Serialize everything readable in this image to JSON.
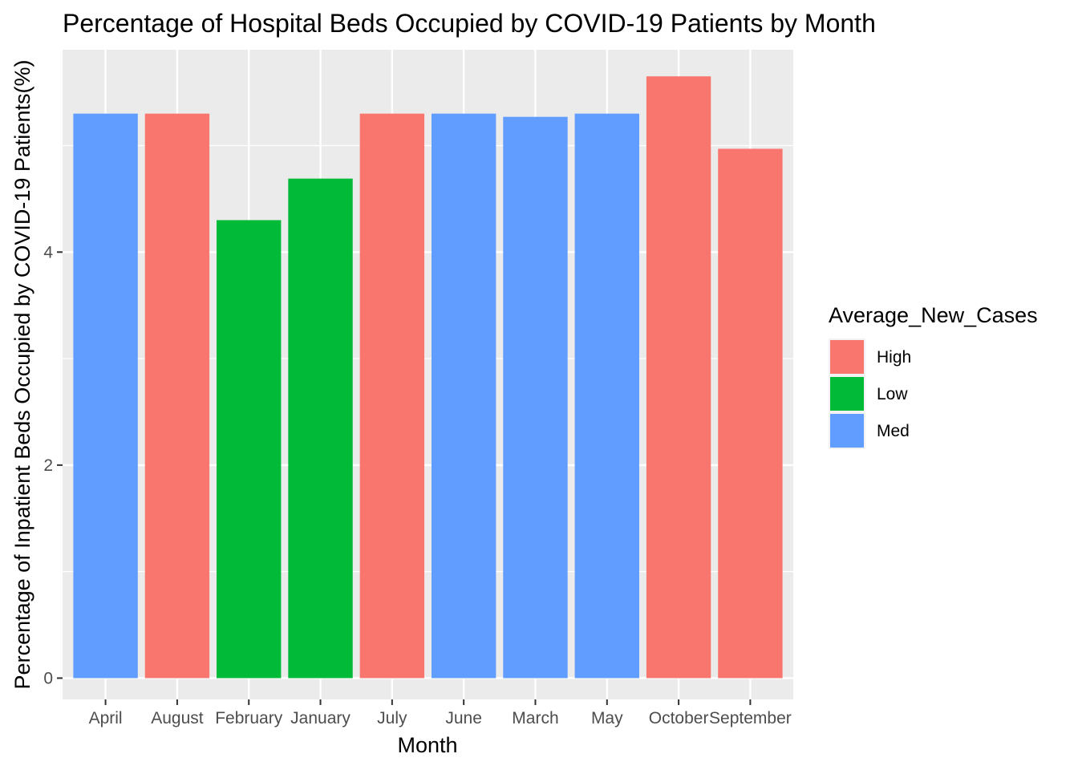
{
  "chart_data": {
    "type": "bar",
    "title": "Percentage of Hospital Beds Occupied by COVID-19 Patients by Month",
    "xlabel": "Month",
    "ylabel": "Percentage of Inpatient Beds Occupied by COVID-19 Patients(%)",
    "categories": [
      "April",
      "August",
      "February",
      "January",
      "July",
      "June",
      "March",
      "May",
      "October",
      "September"
    ],
    "values": [
      5.3,
      5.3,
      4.3,
      4.69,
      5.3,
      5.3,
      5.27,
      5.3,
      5.65,
      4.97
    ],
    "groups": [
      "Med",
      "High",
      "Low",
      "Low",
      "High",
      "Med",
      "Med",
      "Med",
      "High",
      "High"
    ],
    "ylim": [
      -0.2,
      5.9
    ],
    "yticks": [
      0,
      2,
      4
    ],
    "grid": true,
    "legend": {
      "title": "Average_New_Cases",
      "placement": "right",
      "entries": [
        {
          "name": "High",
          "color": "#F8766D"
        },
        {
          "name": "Low",
          "color": "#00BA38"
        },
        {
          "name": "Med",
          "color": "#619CFF"
        }
      ]
    },
    "colors": {
      "panel": "#EBEBEB",
      "grid": "#FFFFFF"
    }
  }
}
